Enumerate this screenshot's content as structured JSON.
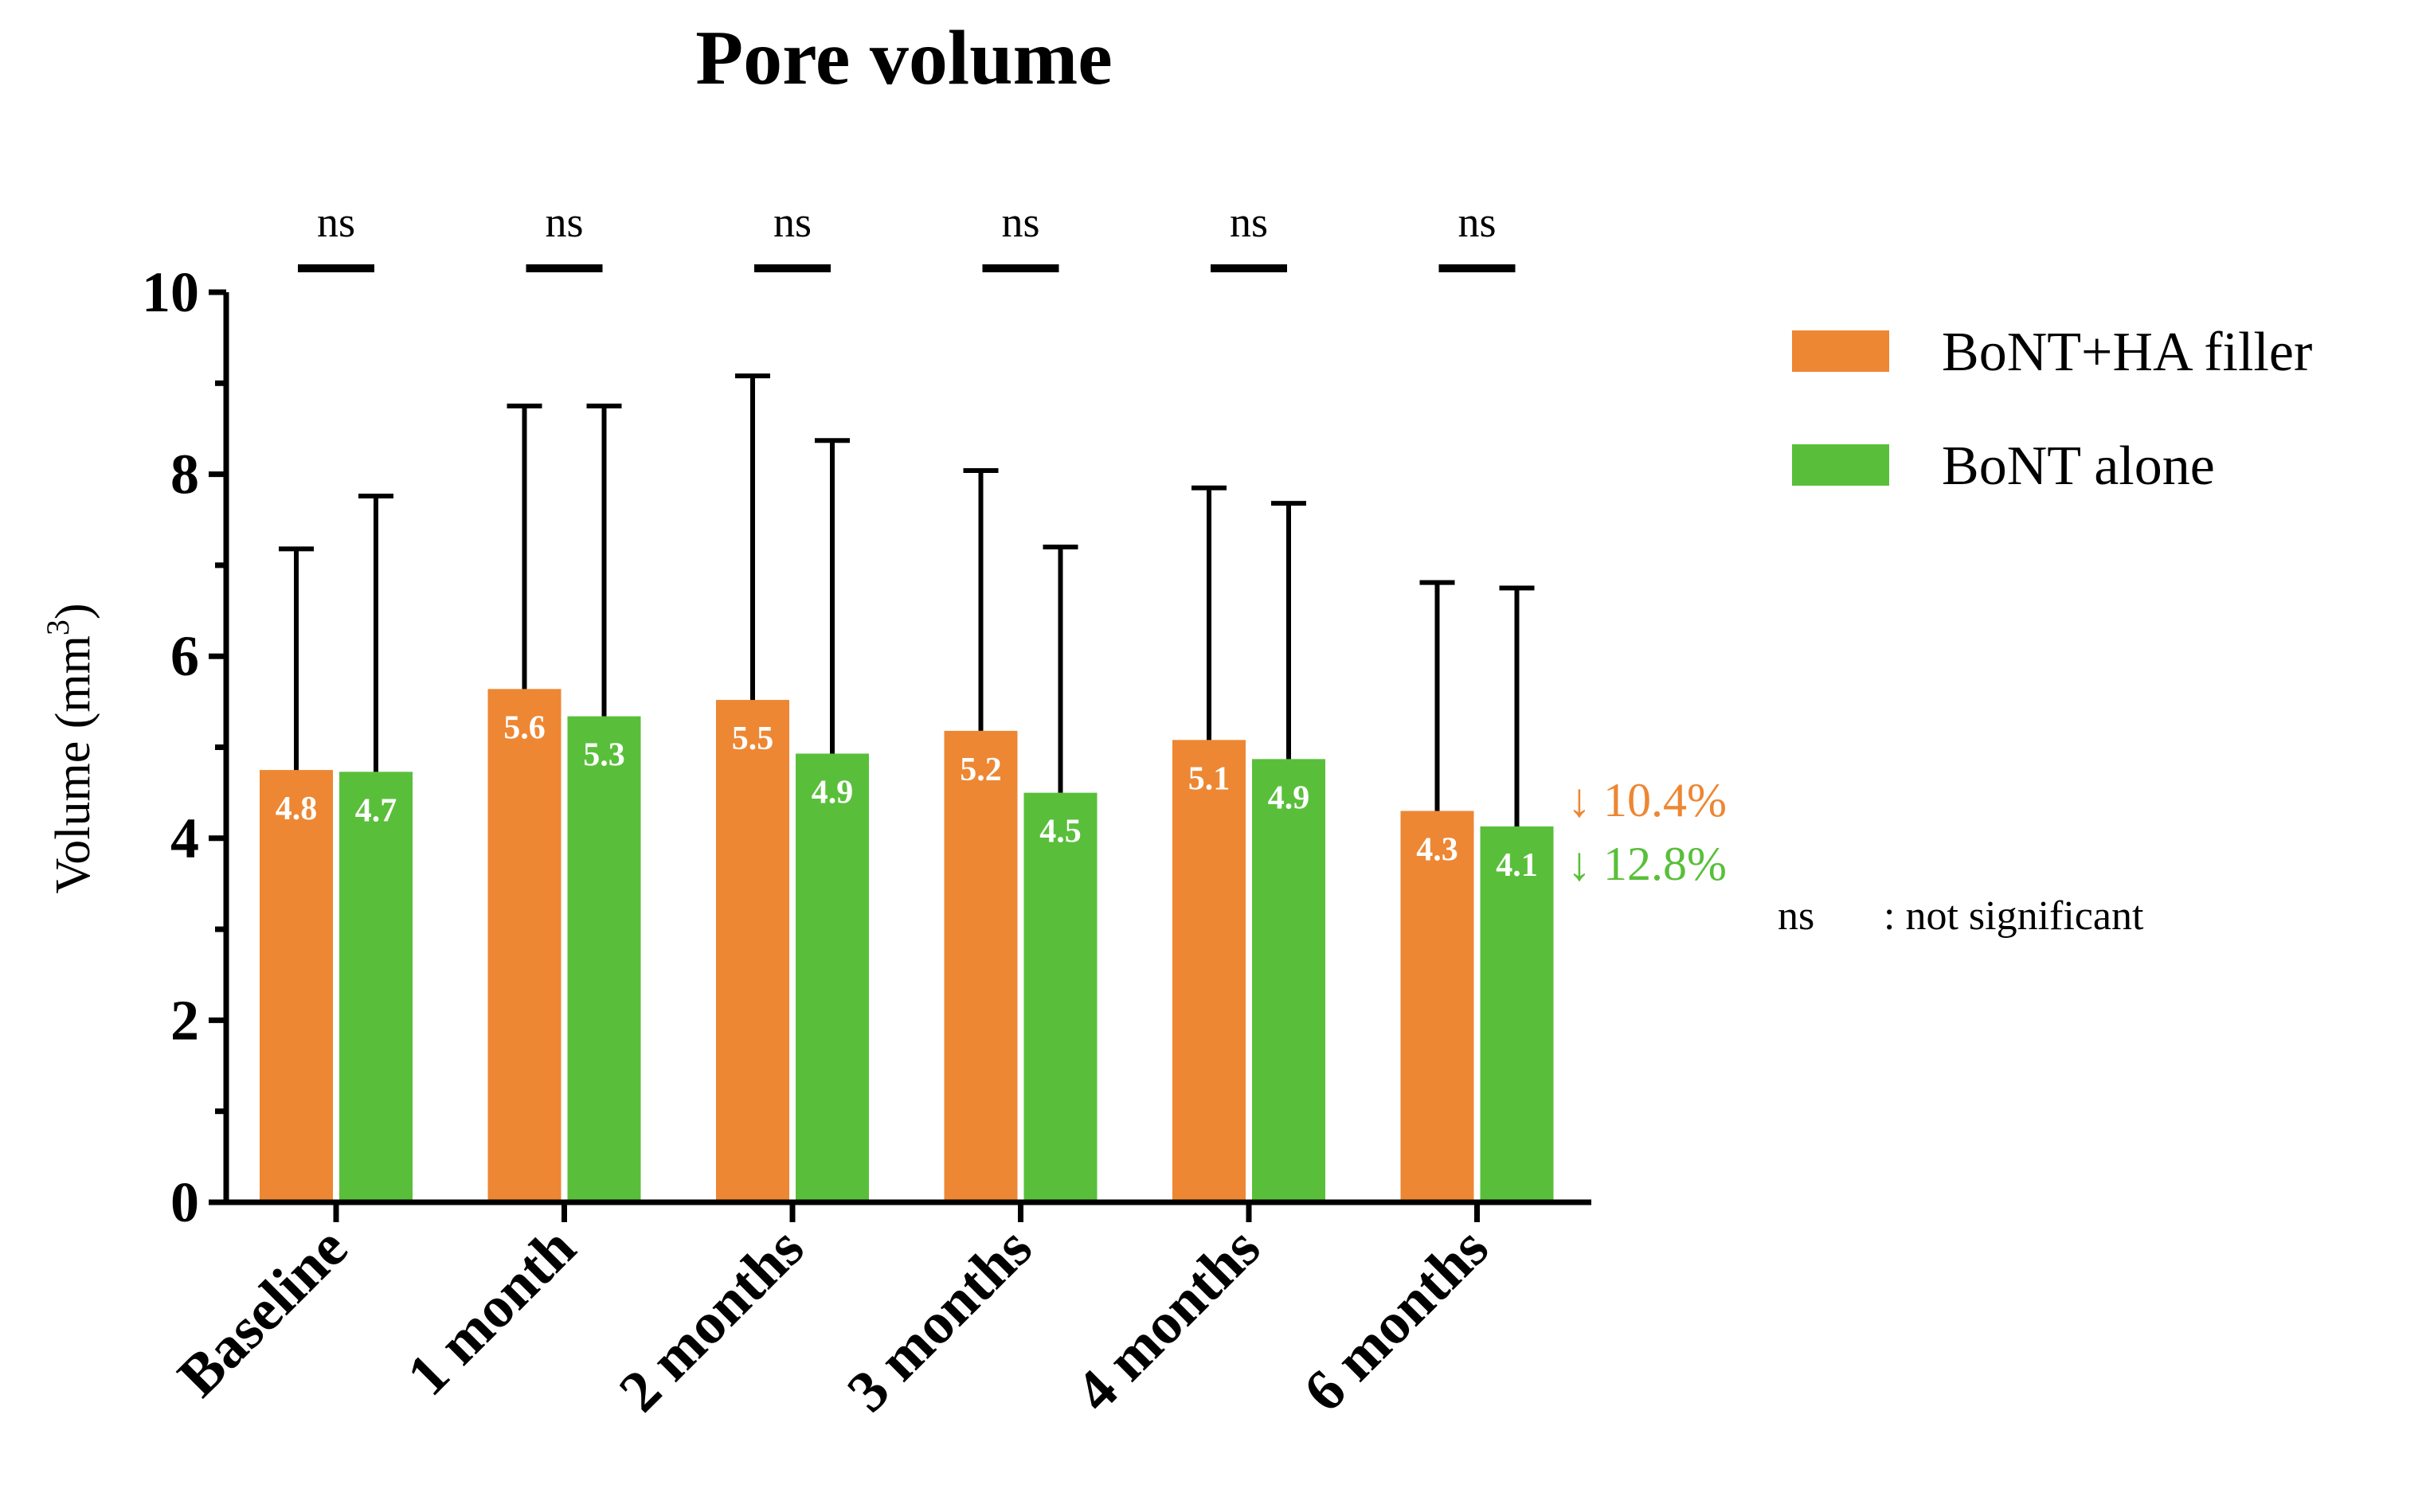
{
  "chart_data": {
    "type": "bar",
    "title": "Pore volume",
    "ylabel": "Volume (mm",
    "ylabel_sup": "3",
    "ylabel_close": ")",
    "xlabel": "",
    "ylim": [
      0,
      10
    ],
    "yticks": [
      0,
      2,
      4,
      6,
      8,
      10
    ],
    "categories": [
      "Baseline",
      "1 month",
      "2 months",
      "3 months",
      "4 months",
      "6 months"
    ],
    "series": [
      {
        "name": "BoNT+HA filler",
        "color": "#ED8733",
        "values": [
          4.75,
          5.64,
          5.52,
          5.18,
          5.08,
          4.3
        ],
        "labels": [
          "4.8",
          "5.6",
          "5.5",
          "5.2",
          "5.1",
          "4.3"
        ],
        "err_upper": [
          7.18,
          8.75,
          9.08,
          8.04,
          7.85,
          6.81
        ]
      },
      {
        "name": "BoNT alone",
        "color": "#59BF3A",
        "values": [
          4.73,
          5.34,
          4.93,
          4.5,
          4.87,
          4.13
        ],
        "labels": [
          "4.7",
          "5.3",
          "4.9",
          "4.5",
          "4.9",
          "4.1"
        ],
        "err_upper": [
          7.76,
          8.75,
          8.37,
          7.2,
          7.68,
          6.75
        ]
      }
    ],
    "significance": [
      "ns",
      "ns",
      "ns",
      "ns",
      "ns",
      "ns"
    ],
    "annotations": [
      {
        "text": "↓ 10.4%",
        "color": "#ED8733"
      },
      {
        "text": "↓ 12.8%",
        "color": "#59BF3A"
      }
    ],
    "footnote": {
      "abbr": "ns",
      "desc": ": not significant"
    },
    "legend_position": "top-right"
  }
}
